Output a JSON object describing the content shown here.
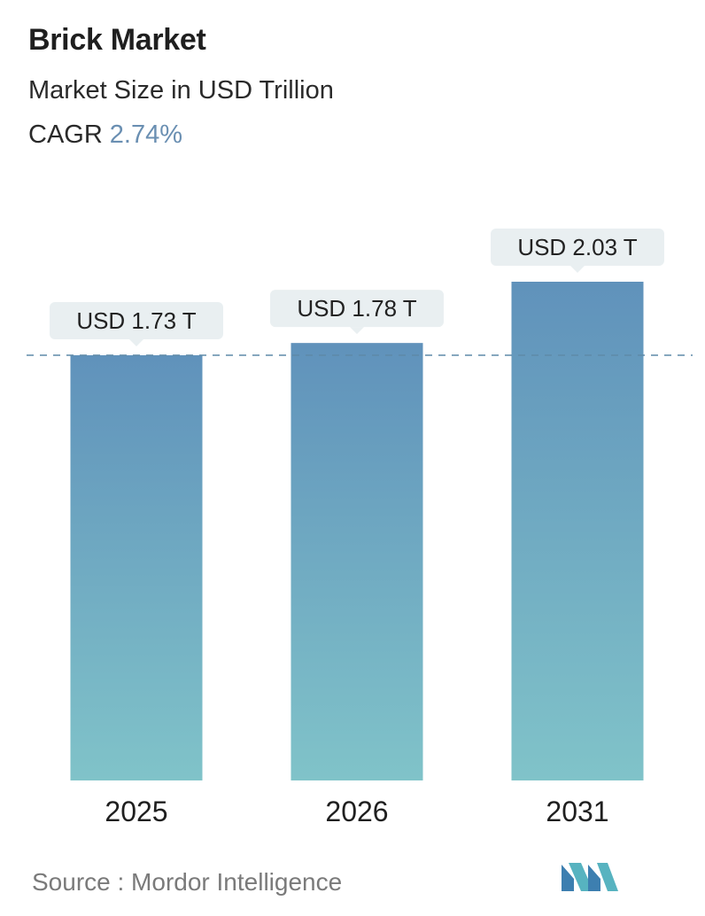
{
  "header": {
    "title": "Brick Market",
    "subtitle": "Market Size in USD Trillion",
    "cagr_label": "CAGR",
    "cagr_value": "2.74%"
  },
  "chart_data": {
    "type": "bar",
    "categories": [
      "2025",
      "2026",
      "2031"
    ],
    "values": [
      1.73,
      1.78,
      2.03
    ],
    "value_labels": [
      "USD 1.73 T",
      "USD 1.78 T",
      "USD 2.03 T"
    ],
    "title": "Brick Market",
    "subtitle": "Market Size in USD Trillion",
    "xlabel": "",
    "ylabel": "",
    "ylim": [
      0,
      2.03
    ],
    "grid": false,
    "reference_line": 1.73,
    "colors": {
      "bar_top": "#6092bb",
      "bar_bottom": "#80c3c9",
      "label_bg": "#e9eff1",
      "dashed_line": "#5e8aa8"
    }
  },
  "footer": {
    "source": "Source :  Mordor Intelligence",
    "logo_icon": "mordor-intelligence-logo-icon"
  }
}
